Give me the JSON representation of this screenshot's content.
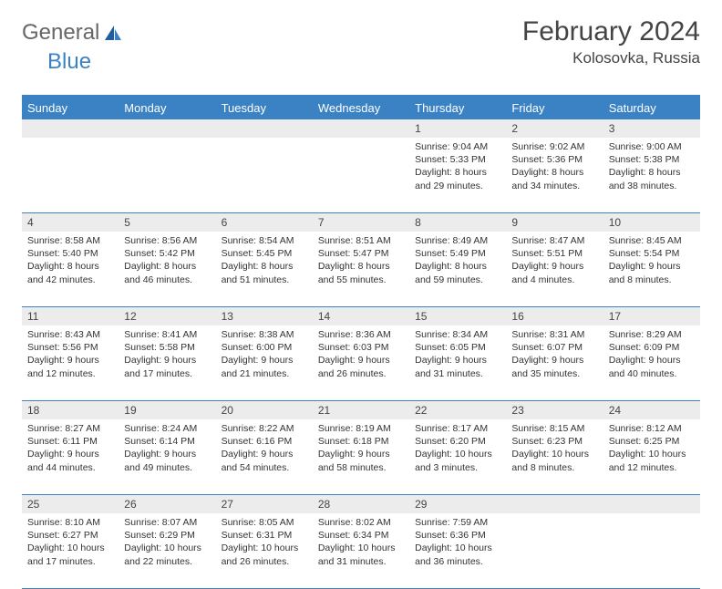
{
  "brand": {
    "part1": "General",
    "part2": "Blue"
  },
  "title": "February 2024",
  "location": "Kolosovka, Russia",
  "colors": {
    "accent": "#3b82c4",
    "header_bg": "#3b82c4",
    "daynum_bg": "#ececec",
    "text": "#333333",
    "background": "#ffffff"
  },
  "day_names": [
    "Sunday",
    "Monday",
    "Tuesday",
    "Wednesday",
    "Thursday",
    "Friday",
    "Saturday"
  ],
  "weeks": [
    [
      {
        "day": "",
        "sunrise": "",
        "sunset": "",
        "daylight": ""
      },
      {
        "day": "",
        "sunrise": "",
        "sunset": "",
        "daylight": ""
      },
      {
        "day": "",
        "sunrise": "",
        "sunset": "",
        "daylight": ""
      },
      {
        "day": "",
        "sunrise": "",
        "sunset": "",
        "daylight": ""
      },
      {
        "day": "1",
        "sunrise": "Sunrise: 9:04 AM",
        "sunset": "Sunset: 5:33 PM",
        "daylight": "Daylight: 8 hours and 29 minutes."
      },
      {
        "day": "2",
        "sunrise": "Sunrise: 9:02 AM",
        "sunset": "Sunset: 5:36 PM",
        "daylight": "Daylight: 8 hours and 34 minutes."
      },
      {
        "day": "3",
        "sunrise": "Sunrise: 9:00 AM",
        "sunset": "Sunset: 5:38 PM",
        "daylight": "Daylight: 8 hours and 38 minutes."
      }
    ],
    [
      {
        "day": "4",
        "sunrise": "Sunrise: 8:58 AM",
        "sunset": "Sunset: 5:40 PM",
        "daylight": "Daylight: 8 hours and 42 minutes."
      },
      {
        "day": "5",
        "sunrise": "Sunrise: 8:56 AM",
        "sunset": "Sunset: 5:42 PM",
        "daylight": "Daylight: 8 hours and 46 minutes."
      },
      {
        "day": "6",
        "sunrise": "Sunrise: 8:54 AM",
        "sunset": "Sunset: 5:45 PM",
        "daylight": "Daylight: 8 hours and 51 minutes."
      },
      {
        "day": "7",
        "sunrise": "Sunrise: 8:51 AM",
        "sunset": "Sunset: 5:47 PM",
        "daylight": "Daylight: 8 hours and 55 minutes."
      },
      {
        "day": "8",
        "sunrise": "Sunrise: 8:49 AM",
        "sunset": "Sunset: 5:49 PM",
        "daylight": "Daylight: 8 hours and 59 minutes."
      },
      {
        "day": "9",
        "sunrise": "Sunrise: 8:47 AM",
        "sunset": "Sunset: 5:51 PM",
        "daylight": "Daylight: 9 hours and 4 minutes."
      },
      {
        "day": "10",
        "sunrise": "Sunrise: 8:45 AM",
        "sunset": "Sunset: 5:54 PM",
        "daylight": "Daylight: 9 hours and 8 minutes."
      }
    ],
    [
      {
        "day": "11",
        "sunrise": "Sunrise: 8:43 AM",
        "sunset": "Sunset: 5:56 PM",
        "daylight": "Daylight: 9 hours and 12 minutes."
      },
      {
        "day": "12",
        "sunrise": "Sunrise: 8:41 AM",
        "sunset": "Sunset: 5:58 PM",
        "daylight": "Daylight: 9 hours and 17 minutes."
      },
      {
        "day": "13",
        "sunrise": "Sunrise: 8:38 AM",
        "sunset": "Sunset: 6:00 PM",
        "daylight": "Daylight: 9 hours and 21 minutes."
      },
      {
        "day": "14",
        "sunrise": "Sunrise: 8:36 AM",
        "sunset": "Sunset: 6:03 PM",
        "daylight": "Daylight: 9 hours and 26 minutes."
      },
      {
        "day": "15",
        "sunrise": "Sunrise: 8:34 AM",
        "sunset": "Sunset: 6:05 PM",
        "daylight": "Daylight: 9 hours and 31 minutes."
      },
      {
        "day": "16",
        "sunrise": "Sunrise: 8:31 AM",
        "sunset": "Sunset: 6:07 PM",
        "daylight": "Daylight: 9 hours and 35 minutes."
      },
      {
        "day": "17",
        "sunrise": "Sunrise: 8:29 AM",
        "sunset": "Sunset: 6:09 PM",
        "daylight": "Daylight: 9 hours and 40 minutes."
      }
    ],
    [
      {
        "day": "18",
        "sunrise": "Sunrise: 8:27 AM",
        "sunset": "Sunset: 6:11 PM",
        "daylight": "Daylight: 9 hours and 44 minutes."
      },
      {
        "day": "19",
        "sunrise": "Sunrise: 8:24 AM",
        "sunset": "Sunset: 6:14 PM",
        "daylight": "Daylight: 9 hours and 49 minutes."
      },
      {
        "day": "20",
        "sunrise": "Sunrise: 8:22 AM",
        "sunset": "Sunset: 6:16 PM",
        "daylight": "Daylight: 9 hours and 54 minutes."
      },
      {
        "day": "21",
        "sunrise": "Sunrise: 8:19 AM",
        "sunset": "Sunset: 6:18 PM",
        "daylight": "Daylight: 9 hours and 58 minutes."
      },
      {
        "day": "22",
        "sunrise": "Sunrise: 8:17 AM",
        "sunset": "Sunset: 6:20 PM",
        "daylight": "Daylight: 10 hours and 3 minutes."
      },
      {
        "day": "23",
        "sunrise": "Sunrise: 8:15 AM",
        "sunset": "Sunset: 6:23 PM",
        "daylight": "Daylight: 10 hours and 8 minutes."
      },
      {
        "day": "24",
        "sunrise": "Sunrise: 8:12 AM",
        "sunset": "Sunset: 6:25 PM",
        "daylight": "Daylight: 10 hours and 12 minutes."
      }
    ],
    [
      {
        "day": "25",
        "sunrise": "Sunrise: 8:10 AM",
        "sunset": "Sunset: 6:27 PM",
        "daylight": "Daylight: 10 hours and 17 minutes."
      },
      {
        "day": "26",
        "sunrise": "Sunrise: 8:07 AM",
        "sunset": "Sunset: 6:29 PM",
        "daylight": "Daylight: 10 hours and 22 minutes."
      },
      {
        "day": "27",
        "sunrise": "Sunrise: 8:05 AM",
        "sunset": "Sunset: 6:31 PM",
        "daylight": "Daylight: 10 hours and 26 minutes."
      },
      {
        "day": "28",
        "sunrise": "Sunrise: 8:02 AM",
        "sunset": "Sunset: 6:34 PM",
        "daylight": "Daylight: 10 hours and 31 minutes."
      },
      {
        "day": "29",
        "sunrise": "Sunrise: 7:59 AM",
        "sunset": "Sunset: 6:36 PM",
        "daylight": "Daylight: 10 hours and 36 minutes."
      },
      {
        "day": "",
        "sunrise": "",
        "sunset": "",
        "daylight": ""
      },
      {
        "day": "",
        "sunrise": "",
        "sunset": "",
        "daylight": ""
      }
    ]
  ]
}
